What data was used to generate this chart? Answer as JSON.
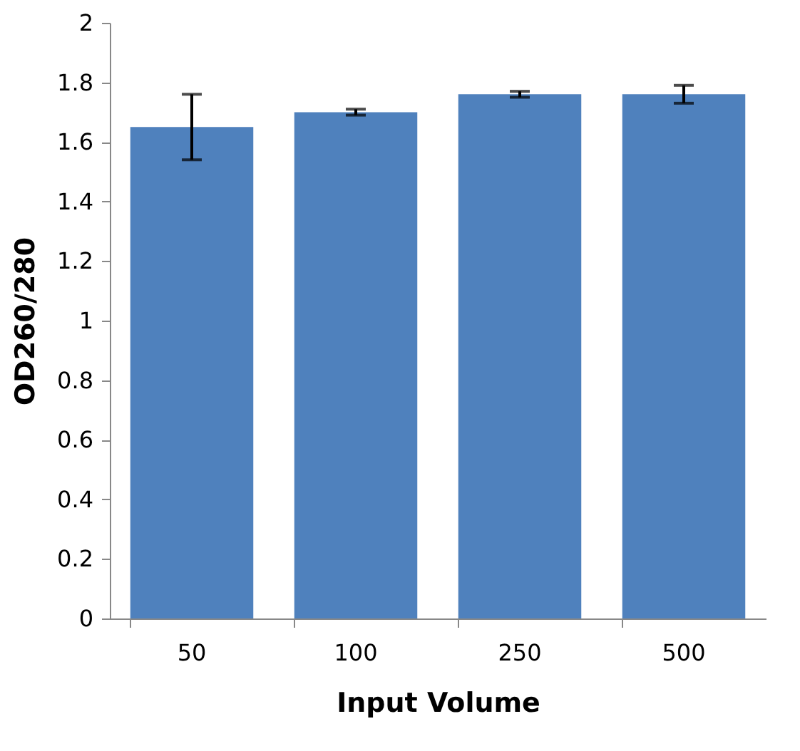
{
  "chart_data": {
    "type": "bar",
    "xlabel": "Input Volume",
    "ylabel": "OD260/280",
    "categories": [
      "50",
      "100",
      "250",
      "500"
    ],
    "values": [
      1.65,
      1.7,
      1.76,
      1.76
    ],
    "errors": [
      0.11,
      0.01,
      0.01,
      0.03
    ],
    "color": "#4f81bd",
    "ylim": [
      0,
      2
    ],
    "yticks": [
      0,
      0.2,
      0.4,
      0.6,
      0.8,
      1,
      1.2,
      1.4,
      1.6,
      1.8,
      2
    ],
    "grid": false
  }
}
